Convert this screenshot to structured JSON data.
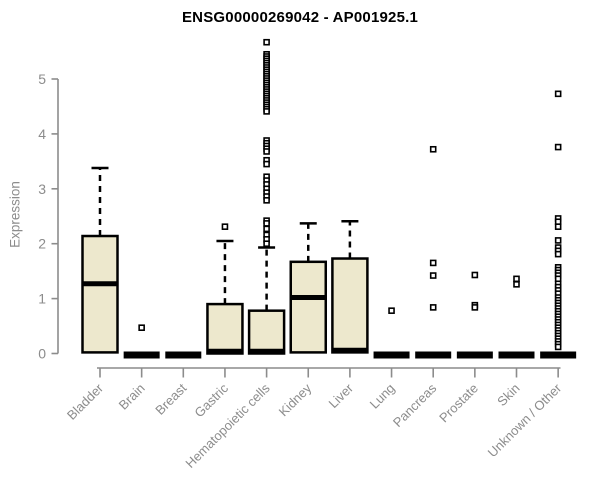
{
  "chart_data": {
    "type": "box",
    "title": "ENSG00000269042 - AP001925.1",
    "ylabel": "Expression",
    "xlabel": "",
    "yticks": [
      0,
      1,
      2,
      3,
      4,
      5
    ],
    "ylim": [
      0,
      5.7
    ],
    "grid": false,
    "legend": "none",
    "categories": [
      {
        "label": "Bladder",
        "q1": 0.02,
        "median": 1.27,
        "q3": 2.14,
        "whisker_low": 0.02,
        "whisker_high": 3.38,
        "outliers": []
      },
      {
        "label": "Brain",
        "q1": 0,
        "median": 0,
        "q3": 0,
        "whisker_low": 0,
        "whisker_high": 0,
        "outliers": [
          0.47
        ]
      },
      {
        "label": "Breast",
        "q1": 0,
        "median": 0,
        "q3": 0,
        "whisker_low": 0,
        "whisker_high": 0,
        "outliers": []
      },
      {
        "label": "Gastric",
        "q1": 0,
        "median": 0.04,
        "q3": 0.9,
        "whisker_low": 0,
        "whisker_high": 2.05,
        "outliers": [
          2.31
        ]
      },
      {
        "label": "Hematopoietic cells",
        "q1": 0,
        "median": 0.04,
        "q3": 0.78,
        "whisker_low": 0,
        "whisker_high": 1.93,
        "outliers": [
          5.67,
          5.45,
          5.41,
          5.37,
          5.33,
          5.29,
          5.25,
          5.21,
          5.17,
          5.13,
          5.09,
          5.05,
          5.01,
          4.97,
          4.93,
          4.89,
          4.85,
          4.81,
          4.77,
          4.73,
          4.69,
          4.65,
          4.61,
          4.57,
          4.53,
          4.49,
          4.45,
          4.41,
          3.88,
          3.83,
          3.78,
          3.73,
          3.68,
          3.52,
          3.45,
          3.22,
          3.15,
          3.08,
          3.0,
          2.93,
          2.86,
          2.79,
          2.42,
          2.37,
          2.27,
          2.16,
          2.08,
          2.0
        ]
      },
      {
        "label": "Kidney",
        "q1": 0.02,
        "median": 1.02,
        "q3": 1.67,
        "whisker_low": 0.02,
        "whisker_high": 2.37,
        "outliers": []
      },
      {
        "label": "Liver",
        "q1": 0.02,
        "median": 0.06,
        "q3": 1.73,
        "whisker_low": 0.02,
        "whisker_high": 2.41,
        "outliers": []
      },
      {
        "label": "Lung",
        "q1": 0,
        "median": 0,
        "q3": 0,
        "whisker_low": 0,
        "whisker_high": 0,
        "outliers": [
          0.78
        ]
      },
      {
        "label": "Pancreas",
        "q1": 0,
        "median": 0,
        "q3": 0,
        "whisker_low": 0,
        "whisker_high": 0,
        "outliers": [
          3.72,
          1.65,
          1.42,
          0.84
        ]
      },
      {
        "label": "Prostate",
        "q1": 0,
        "median": 0,
        "q3": 0,
        "whisker_low": 0,
        "whisker_high": 0,
        "outliers": [
          1.43,
          0.88,
          0.84
        ]
      },
      {
        "label": "Skin",
        "q1": 0,
        "median": 0,
        "q3": 0,
        "whisker_low": 0,
        "whisker_high": 0,
        "outliers": [
          1.36,
          1.26
        ]
      },
      {
        "label": "Unknown / Other",
        "q1": 0,
        "median": 0,
        "q3": 0,
        "whisker_low": 0,
        "whisker_high": 0,
        "outliers": [
          4.73,
          3.76,
          2.46,
          2.4,
          2.31,
          2.06,
          1.93,
          1.87,
          1.81,
          1.57,
          1.52,
          1.47,
          1.42,
          1.36,
          1.27,
          1.21,
          1.15,
          1.09,
          1.02,
          0.97,
          0.92,
          0.87,
          0.82,
          0.77,
          0.72,
          0.67,
          0.62,
          0.57,
          0.52,
          0.47,
          0.42,
          0.37,
          0.32,
          0.27,
          0.22,
          0.17,
          0.12
        ]
      }
    ],
    "colors": {
      "box_fill": "#EDE8CD",
      "box_stroke": "#000000",
      "median": "#000000",
      "whisker": "#000000",
      "outlier_stroke": "#000000",
      "outlier_fill": "#FFFFFF",
      "axis": "#8C8C8C",
      "tick_label": "#8C8C8C",
      "title": "#000000",
      "background": "#FFFFFF"
    }
  }
}
